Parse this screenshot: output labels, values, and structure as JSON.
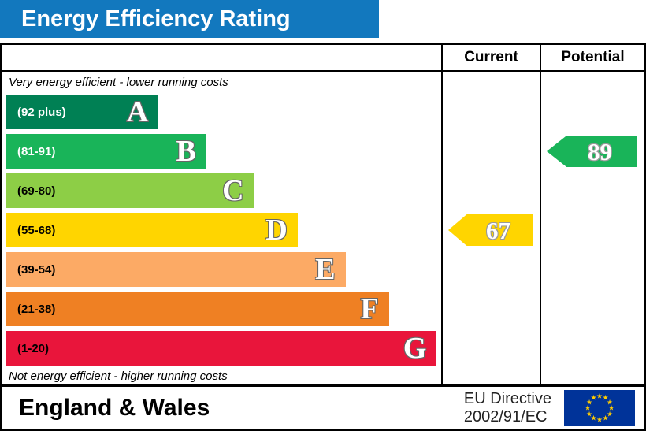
{
  "title": "Energy Efficiency Rating",
  "title_bar_color": "#1278be",
  "columns": {
    "current": "Current",
    "potential": "Potential"
  },
  "chart_data": {
    "type": "bar",
    "title": "Energy Efficiency Rating",
    "top_note": "Very energy efficient - lower running costs",
    "bottom_note": "Not energy efficient - higher running costs",
    "scale": [
      1,
      100
    ],
    "bands": [
      {
        "letter": "A",
        "range_label": "(92 plus)",
        "min": 92,
        "max": 100,
        "color": "#008054",
        "width_pct": 35,
        "label_color": "#ffffff"
      },
      {
        "letter": "B",
        "range_label": "(81-91)",
        "min": 81,
        "max": 91,
        "color": "#19b459",
        "width_pct": 46,
        "label_color": "#ffffff"
      },
      {
        "letter": "C",
        "range_label": "(69-80)",
        "min": 69,
        "max": 80,
        "color": "#8dce46",
        "width_pct": 57,
        "label_color": "#000000"
      },
      {
        "letter": "D",
        "range_label": "(55-68)",
        "min": 55,
        "max": 68,
        "color": "#ffd500",
        "width_pct": 67,
        "label_color": "#000000"
      },
      {
        "letter": "E",
        "range_label": "(39-54)",
        "min": 39,
        "max": 54,
        "color": "#fcaa65",
        "width_pct": 78,
        "label_color": "#000000"
      },
      {
        "letter": "F",
        "range_label": "(21-38)",
        "min": 21,
        "max": 38,
        "color": "#ef8023",
        "width_pct": 88,
        "label_color": "#000000"
      },
      {
        "letter": "G",
        "range_label": "(1-20)",
        "min": 1,
        "max": 20,
        "color": "#e9153b",
        "width_pct": 99,
        "label_color": "#000000"
      }
    ],
    "ratings": {
      "current": {
        "value": 67,
        "band": "D",
        "band_index": 3,
        "color": "#ffd500"
      },
      "potential": {
        "value": 89,
        "band": "B",
        "band_index": 1,
        "color": "#19b459"
      }
    }
  },
  "footer": {
    "region": "England & Wales",
    "directive_line1": "EU Directive",
    "directive_line2": "2002/91/EC",
    "flag_colors": {
      "background": "#003399",
      "stars": "#ffcc00"
    }
  }
}
